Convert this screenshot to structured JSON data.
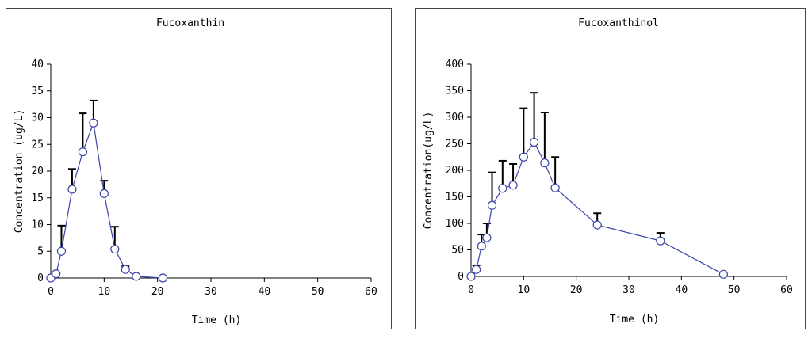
{
  "chart_data": [
    {
      "type": "line",
      "title": "Fucoxanthin",
      "xlabel": "Time (h)",
      "ylabel": "Concentration (ug/L)",
      "xlim": [
        0,
        60
      ],
      "ylim": [
        0,
        40
      ],
      "xticks": [
        0,
        10,
        20,
        30,
        40,
        50,
        60
      ],
      "yticks": [
        0,
        5,
        10,
        15,
        20,
        25,
        30,
        35,
        40
      ],
      "grid": false,
      "line_color": "#3b45a8",
      "series": [
        {
          "x": [
            0,
            1,
            2,
            4,
            6,
            8,
            10,
            12,
            14,
            16,
            21
          ],
          "y": [
            0,
            0.8,
            5.0,
            16.6,
            23.6,
            29.0,
            15.8,
            5.4,
            1.6,
            0.3,
            0
          ],
          "error": [
            0,
            0,
            4.8,
            3.8,
            7.2,
            4.2,
            2.4,
            4.2,
            0.6,
            0,
            0
          ]
        }
      ]
    },
    {
      "type": "line",
      "title": "Fucoxanthinol",
      "xlabel": "Time (h)",
      "ylabel": "Concentration(ug/L)",
      "xlim": [
        0,
        60
      ],
      "ylim": [
        0,
        400
      ],
      "xticks": [
        0,
        10,
        20,
        30,
        40,
        50,
        60
      ],
      "yticks": [
        0,
        50,
        100,
        150,
        200,
        250,
        300,
        350,
        400
      ],
      "grid": false,
      "line_color": "#3b45a8",
      "series": [
        {
          "x": [
            0,
            1,
            2,
            3,
            4,
            6,
            8,
            10,
            12,
            14,
            16,
            24,
            36,
            48
          ],
          "y": [
            0,
            13,
            57,
            73,
            134,
            166,
            172,
            225,
            253,
            214,
            167,
            97,
            67,
            4
          ],
          "error": [
            0,
            8,
            22,
            27,
            62,
            52,
            40,
            92,
            93,
            95,
            58,
            22,
            15,
            3
          ]
        }
      ]
    }
  ]
}
